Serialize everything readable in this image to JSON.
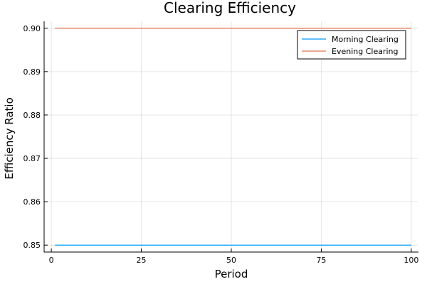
{
  "chart_data": {
    "type": "line",
    "title": "Clearing Efficiency",
    "xlabel": "Period",
    "ylabel": "Efficiency Ratio",
    "xlim": [
      -2,
      102
    ],
    "ylim": [
      0.8484,
      0.9016
    ],
    "xticks": [
      0,
      25,
      50,
      75,
      100
    ],
    "yticks": [
      0.85,
      0.86,
      0.87,
      0.88,
      0.89,
      0.9
    ],
    "ytick_labels": [
      "0.85",
      "0.86",
      "0.87",
      "0.88",
      "0.89",
      "0.90"
    ],
    "grid": true,
    "legend_position": "top-right",
    "series": [
      {
        "name": "Morning Clearing",
        "color": "#009af9",
        "x": [
          1,
          100
        ],
        "y": [
          0.85,
          0.85
        ]
      },
      {
        "name": "Evening Clearing",
        "color": "#e26f46",
        "x": [
          1,
          100
        ],
        "y": [
          0.9,
          0.9
        ]
      }
    ]
  }
}
